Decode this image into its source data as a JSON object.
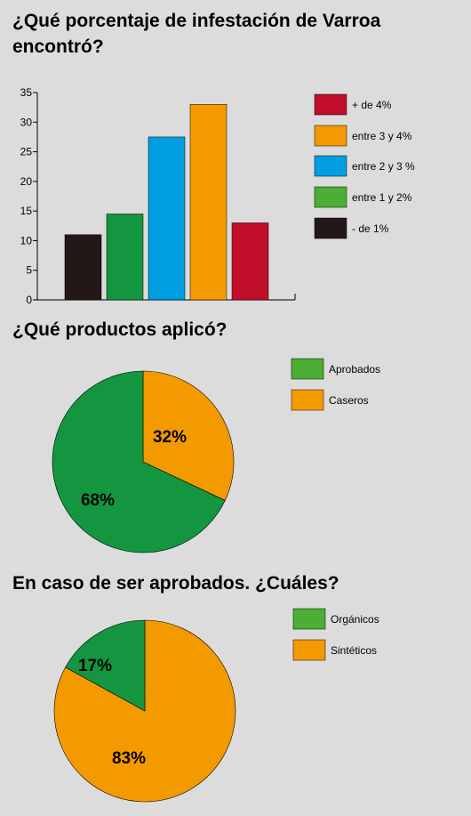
{
  "colors": {
    "background": "#dcdcdc",
    "red": "#c10e2b",
    "orange": "#f39a00",
    "blue": "#009ee0",
    "green": "#13963f",
    "legend_green": "#4cae32",
    "black": "#231815"
  },
  "chart_data": [
    {
      "type": "bar",
      "title": "¿Qué porcentaje de infestación de Varroa encontró?",
      "title_lines": [
        "¿Qué porcentaje de infestación de Varroa",
        "encontró?"
      ],
      "categories": [
        "- de 1%",
        "entre 1 y 2%",
        "entre 2 y 3 %",
        "entre 3 y 4%",
        "+ de 4%"
      ],
      "values": [
        11,
        14.5,
        27.5,
        33,
        13
      ],
      "bar_colors": [
        "#231815",
        "#13963f",
        "#009ee0",
        "#f39a00",
        "#c10e2b"
      ],
      "ylim": [
        0,
        35
      ],
      "yticks": [
        0,
        5,
        10,
        15,
        20,
        25,
        30,
        35
      ],
      "xlabel": "",
      "ylabel": "",
      "legend_position": "right",
      "legend": [
        {
          "label": "+ de 4%",
          "color": "#c10e2b"
        },
        {
          "label": "entre 3 y 4%",
          "color": "#f39a00"
        },
        {
          "label": "entre 2 y 3 %",
          "color": "#009ee0"
        },
        {
          "label": "entre 1 y 2%",
          "color": "#4cae32"
        },
        {
          "label": "- de 1%",
          "color": "#231815"
        }
      ]
    },
    {
      "type": "pie",
      "title": "¿Qué productos aplicó?",
      "slices": [
        {
          "label": "Casero",
          "value": 32,
          "text": "32%",
          "color": "#f39a00"
        },
        {
          "label": "Aprobados",
          "value": 68,
          "text": "68%",
          "color": "#13963f"
        }
      ],
      "legend_position": "top-right",
      "legend": [
        {
          "label": "Aprobados",
          "color": "#4cae32"
        },
        {
          "label": "Caseros",
          "color": "#f39a00"
        }
      ]
    },
    {
      "type": "pie",
      "title": "En caso de ser aprobados. ¿Cuáles?",
      "slices": [
        {
          "label": "Sintéticos",
          "value": 83,
          "text": "83%",
          "color": "#f39a00"
        },
        {
          "label": "Orgánicos",
          "value": 17,
          "text": "17%",
          "color": "#13963f"
        }
      ],
      "legend_position": "top-right",
      "legend": [
        {
          "label": "Orgánicos",
          "color": "#4cae32"
        },
        {
          "label": "Sintéticos",
          "color": "#f39a00"
        }
      ]
    }
  ]
}
